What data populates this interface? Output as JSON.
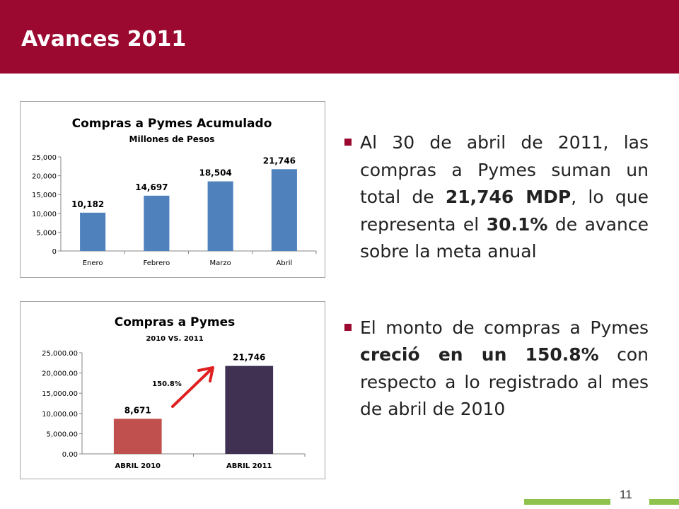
{
  "slide": {
    "title": "Avances 2011",
    "page_number": "11"
  },
  "bullets": [
    {
      "parts": [
        {
          "text": "Al 30 de abril de 2011, las compras a  Pymes suman un total de ",
          "bold": false
        },
        {
          "text": "21,746 MDP",
          "bold": true
        },
        {
          "text": ", lo que representa el ",
          "bold": false
        },
        {
          "text": "30.1%",
          "bold": true
        },
        {
          "text": " de avance sobre la meta anual",
          "bold": false
        }
      ]
    },
    {
      "parts": [
        {
          "text": "El monto de compras a Pymes ",
          "bold": false
        },
        {
          "text": "creció en un 150.8%",
          "bold": true
        },
        {
          "text": " con respecto a lo registrado al mes de abril de 2010",
          "bold": false
        }
      ]
    }
  ],
  "colors": {
    "header": "#9b0830",
    "accent_green": "#8ec24d",
    "arrow": "#e02020"
  },
  "chart_data": [
    {
      "type": "bar",
      "title": "Compras a Pymes Acumulado",
      "subtitle": "Millones de Pesos",
      "categories": [
        "Enero",
        "Febrero",
        "Marzo",
        "Abril"
      ],
      "values": [
        10182,
        14697,
        18504,
        21746
      ],
      "data_labels": [
        "10,182",
        "14,697",
        "18,504",
        "21,746"
      ],
      "ylim": [
        0,
        25000
      ],
      "ytick_values": [
        0,
        5000,
        10000,
        15000,
        20000,
        25000
      ],
      "yticks": [
        "0",
        "5,000",
        "10,000",
        "15,000",
        "20,000",
        "25,000"
      ],
      "bar_colors": [
        "#4f81bd",
        "#4f81bd",
        "#4f81bd",
        "#4f81bd"
      ],
      "grid": false,
      "legend": "none"
    },
    {
      "type": "bar",
      "title": "Compras a Pymes",
      "subtitle": "2010 VS. 2011",
      "categories": [
        "ABRIL 2010",
        "ABRIL 2011"
      ],
      "values": [
        8671,
        21746
      ],
      "data_labels": [
        "8,671",
        "21,746"
      ],
      "ylim": [
        0,
        25000
      ],
      "ytick_values": [
        0,
        5000,
        10000,
        15000,
        20000,
        25000
      ],
      "yticks": [
        "0.00",
        "5,000.00",
        "10,000.00",
        "15,000.00",
        "20,000.00",
        "25,000.00"
      ],
      "bar_colors": [
        "#c0504d",
        "#403152"
      ],
      "annotation": "150.8%",
      "grid": false,
      "legend": "none"
    }
  ]
}
